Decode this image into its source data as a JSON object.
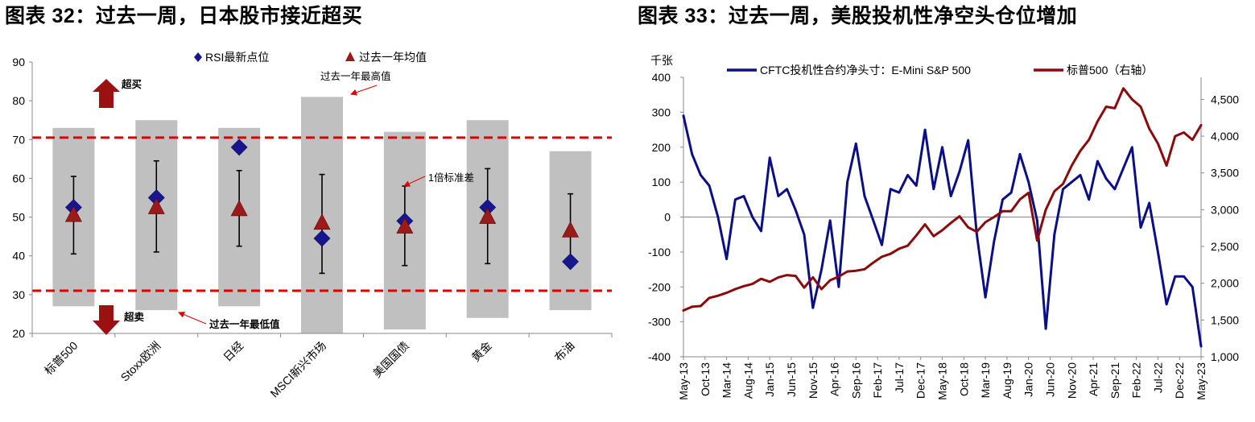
{
  "chart_data": [
    {
      "type": "bar",
      "title": "图表 32：过去一周，日本股市接近超买",
      "categories": [
        "标普500",
        "Stoxx欧洲",
        "日经",
        "MSCI新兴市场",
        "美国国债",
        "黄金",
        "布油"
      ],
      "ylim": [
        20,
        90
      ],
      "yticks": [
        20,
        30,
        40,
        50,
        60,
        70,
        80,
        90
      ],
      "range_high": [
        73,
        75,
        73,
        81,
        72,
        75,
        67
      ],
      "range_low": [
        27,
        26,
        27,
        20,
        21,
        24,
        26
      ],
      "series": [
        {
          "name": "RSI最新点位",
          "values": [
            52.5,
            55,
            68,
            44.5,
            49,
            52.5,
            38.5
          ]
        },
        {
          "name": "过去一年均值",
          "values": [
            50.5,
            52.5,
            52,
            48.5,
            47.5,
            50,
            46.5
          ]
        }
      ],
      "std_high": [
        60.5,
        64.5,
        62,
        61,
        58,
        62.5,
        56
      ],
      "std_low": [
        40.5,
        41,
        42.5,
        35.5,
        37.5,
        38,
        38.5
      ],
      "overbought_line": 70.5,
      "oversold_line": 31,
      "annotations": {
        "overbought": "超买",
        "oversold": "超卖",
        "year_high": "过去一年最高值",
        "year_low": "过去一年最低值",
        "std": "1倍标准差"
      }
    },
    {
      "type": "line",
      "title": "图表 33：过去一周，美股投机性净空头仓位增加",
      "left_unit": "千张",
      "ylim_left": [
        -400,
        400
      ],
      "yticks_left": [
        -400,
        -300,
        -200,
        -100,
        0,
        100,
        200,
        300,
        400
      ],
      "ylim_right": [
        1000,
        4800
      ],
      "yticks_right": [
        "1,000",
        "1,500",
        "2,000",
        "2,500",
        "3,000",
        "3,500",
        "4,000",
        "4,500"
      ],
      "x_ticks": [
        "May-13",
        "Oct-13",
        "Mar-14",
        "Aug-14",
        "Jan-15",
        "Jun-15",
        "Nov-15",
        "Apr-16",
        "Sep-16",
        "Feb-17",
        "Jul-17",
        "Dec-17",
        "May-18",
        "Oct-18",
        "Mar-19",
        "Aug-19",
        "Jan-20",
        "Jun-20",
        "Nov-20",
        "Apr-21",
        "Sep-21",
        "Feb-22",
        "Jul-22",
        "Dec-22",
        "May-23"
      ],
      "series": [
        {
          "name": "CFTC投机性合约净头寸：E-Mini S&P 500",
          "axis": "left",
          "color": "#0a0f87",
          "x": [
            "May-13",
            "Jul-13",
            "Sep-13",
            "Nov-13",
            "Jan-14",
            "Mar-14",
            "May-14",
            "Jul-14",
            "Sep-14",
            "Nov-14",
            "Jan-15",
            "Mar-15",
            "May-15",
            "Jul-15",
            "Sep-15",
            "Nov-15",
            "Jan-16",
            "Mar-16",
            "May-16",
            "Jul-16",
            "Sep-16",
            "Nov-16",
            "Jan-17",
            "Mar-17",
            "May-17",
            "Jul-17",
            "Sep-17",
            "Nov-17",
            "Jan-18",
            "Mar-18",
            "May-18",
            "Jul-18",
            "Sep-18",
            "Nov-18",
            "Jan-19",
            "Mar-19",
            "May-19",
            "Jul-19",
            "Sep-19",
            "Nov-19",
            "Jan-20",
            "Mar-20",
            "May-20",
            "Jul-20",
            "Sep-20",
            "Nov-20",
            "Jan-21",
            "Mar-21",
            "May-21",
            "Jul-21",
            "Sep-21",
            "Nov-21",
            "Jan-22",
            "Mar-22",
            "May-22",
            "Jul-22",
            "Sep-22",
            "Nov-22",
            "Jan-23",
            "Mar-23",
            "May-23"
          ],
          "values": [
            290,
            180,
            120,
            90,
            0,
            -120,
            50,
            60,
            0,
            -40,
            170,
            60,
            80,
            20,
            -50,
            -260,
            -150,
            -10,
            -200,
            100,
            210,
            60,
            -10,
            -80,
            80,
            70,
            120,
            90,
            250,
            80,
            200,
            60,
            130,
            220,
            -50,
            -230,
            -70,
            50,
            70,
            180,
            100,
            -10,
            -320,
            -50,
            80,
            100,
            120,
            50,
            160,
            110,
            80,
            140,
            200,
            -30,
            40,
            -100,
            -250,
            -170,
            -170,
            -200,
            -370
          ]
        },
        {
          "name": "标普500（右轴）",
          "axis": "right",
          "color": "#8b0a0a",
          "x": [
            "May-13",
            "Jul-13",
            "Sep-13",
            "Nov-13",
            "Jan-14",
            "Mar-14",
            "May-14",
            "Jul-14",
            "Sep-14",
            "Nov-14",
            "Jan-15",
            "Mar-15",
            "May-15",
            "Jul-15",
            "Sep-15",
            "Nov-15",
            "Jan-16",
            "Mar-16",
            "May-16",
            "Jul-16",
            "Sep-16",
            "Nov-16",
            "Jan-17",
            "Mar-17",
            "May-17",
            "Jul-17",
            "Sep-17",
            "Nov-17",
            "Jan-18",
            "Mar-18",
            "May-18",
            "Jul-18",
            "Sep-18",
            "Nov-18",
            "Jan-19",
            "Mar-19",
            "May-19",
            "Jul-19",
            "Sep-19",
            "Nov-19",
            "Jan-20",
            "Mar-20",
            "May-20",
            "Jul-20",
            "Sep-20",
            "Nov-20",
            "Jan-21",
            "Mar-21",
            "May-21",
            "Jul-21",
            "Sep-21",
            "Nov-21",
            "Jan-22",
            "Mar-22",
            "May-22",
            "Jul-22",
            "Sep-22",
            "Nov-22",
            "Jan-23",
            "Mar-23",
            "May-23"
          ],
          "values": [
            1630,
            1680,
            1690,
            1800,
            1830,
            1870,
            1920,
            1960,
            1990,
            2060,
            2020,
            2080,
            2110,
            2100,
            1940,
            2080,
            1920,
            2040,
            2090,
            2160,
            2170,
            2190,
            2280,
            2360,
            2400,
            2470,
            2510,
            2650,
            2800,
            2640,
            2720,
            2820,
            2910,
            2760,
            2700,
            2830,
            2900,
            2980,
            2980,
            3140,
            3230,
            2580,
            3000,
            3250,
            3350,
            3600,
            3800,
            3950,
            4200,
            4400,
            4380,
            4650,
            4500,
            4400,
            4100,
            3900,
            3600,
            4000,
            4050,
            3950,
            4150
          ]
        }
      ]
    }
  ]
}
